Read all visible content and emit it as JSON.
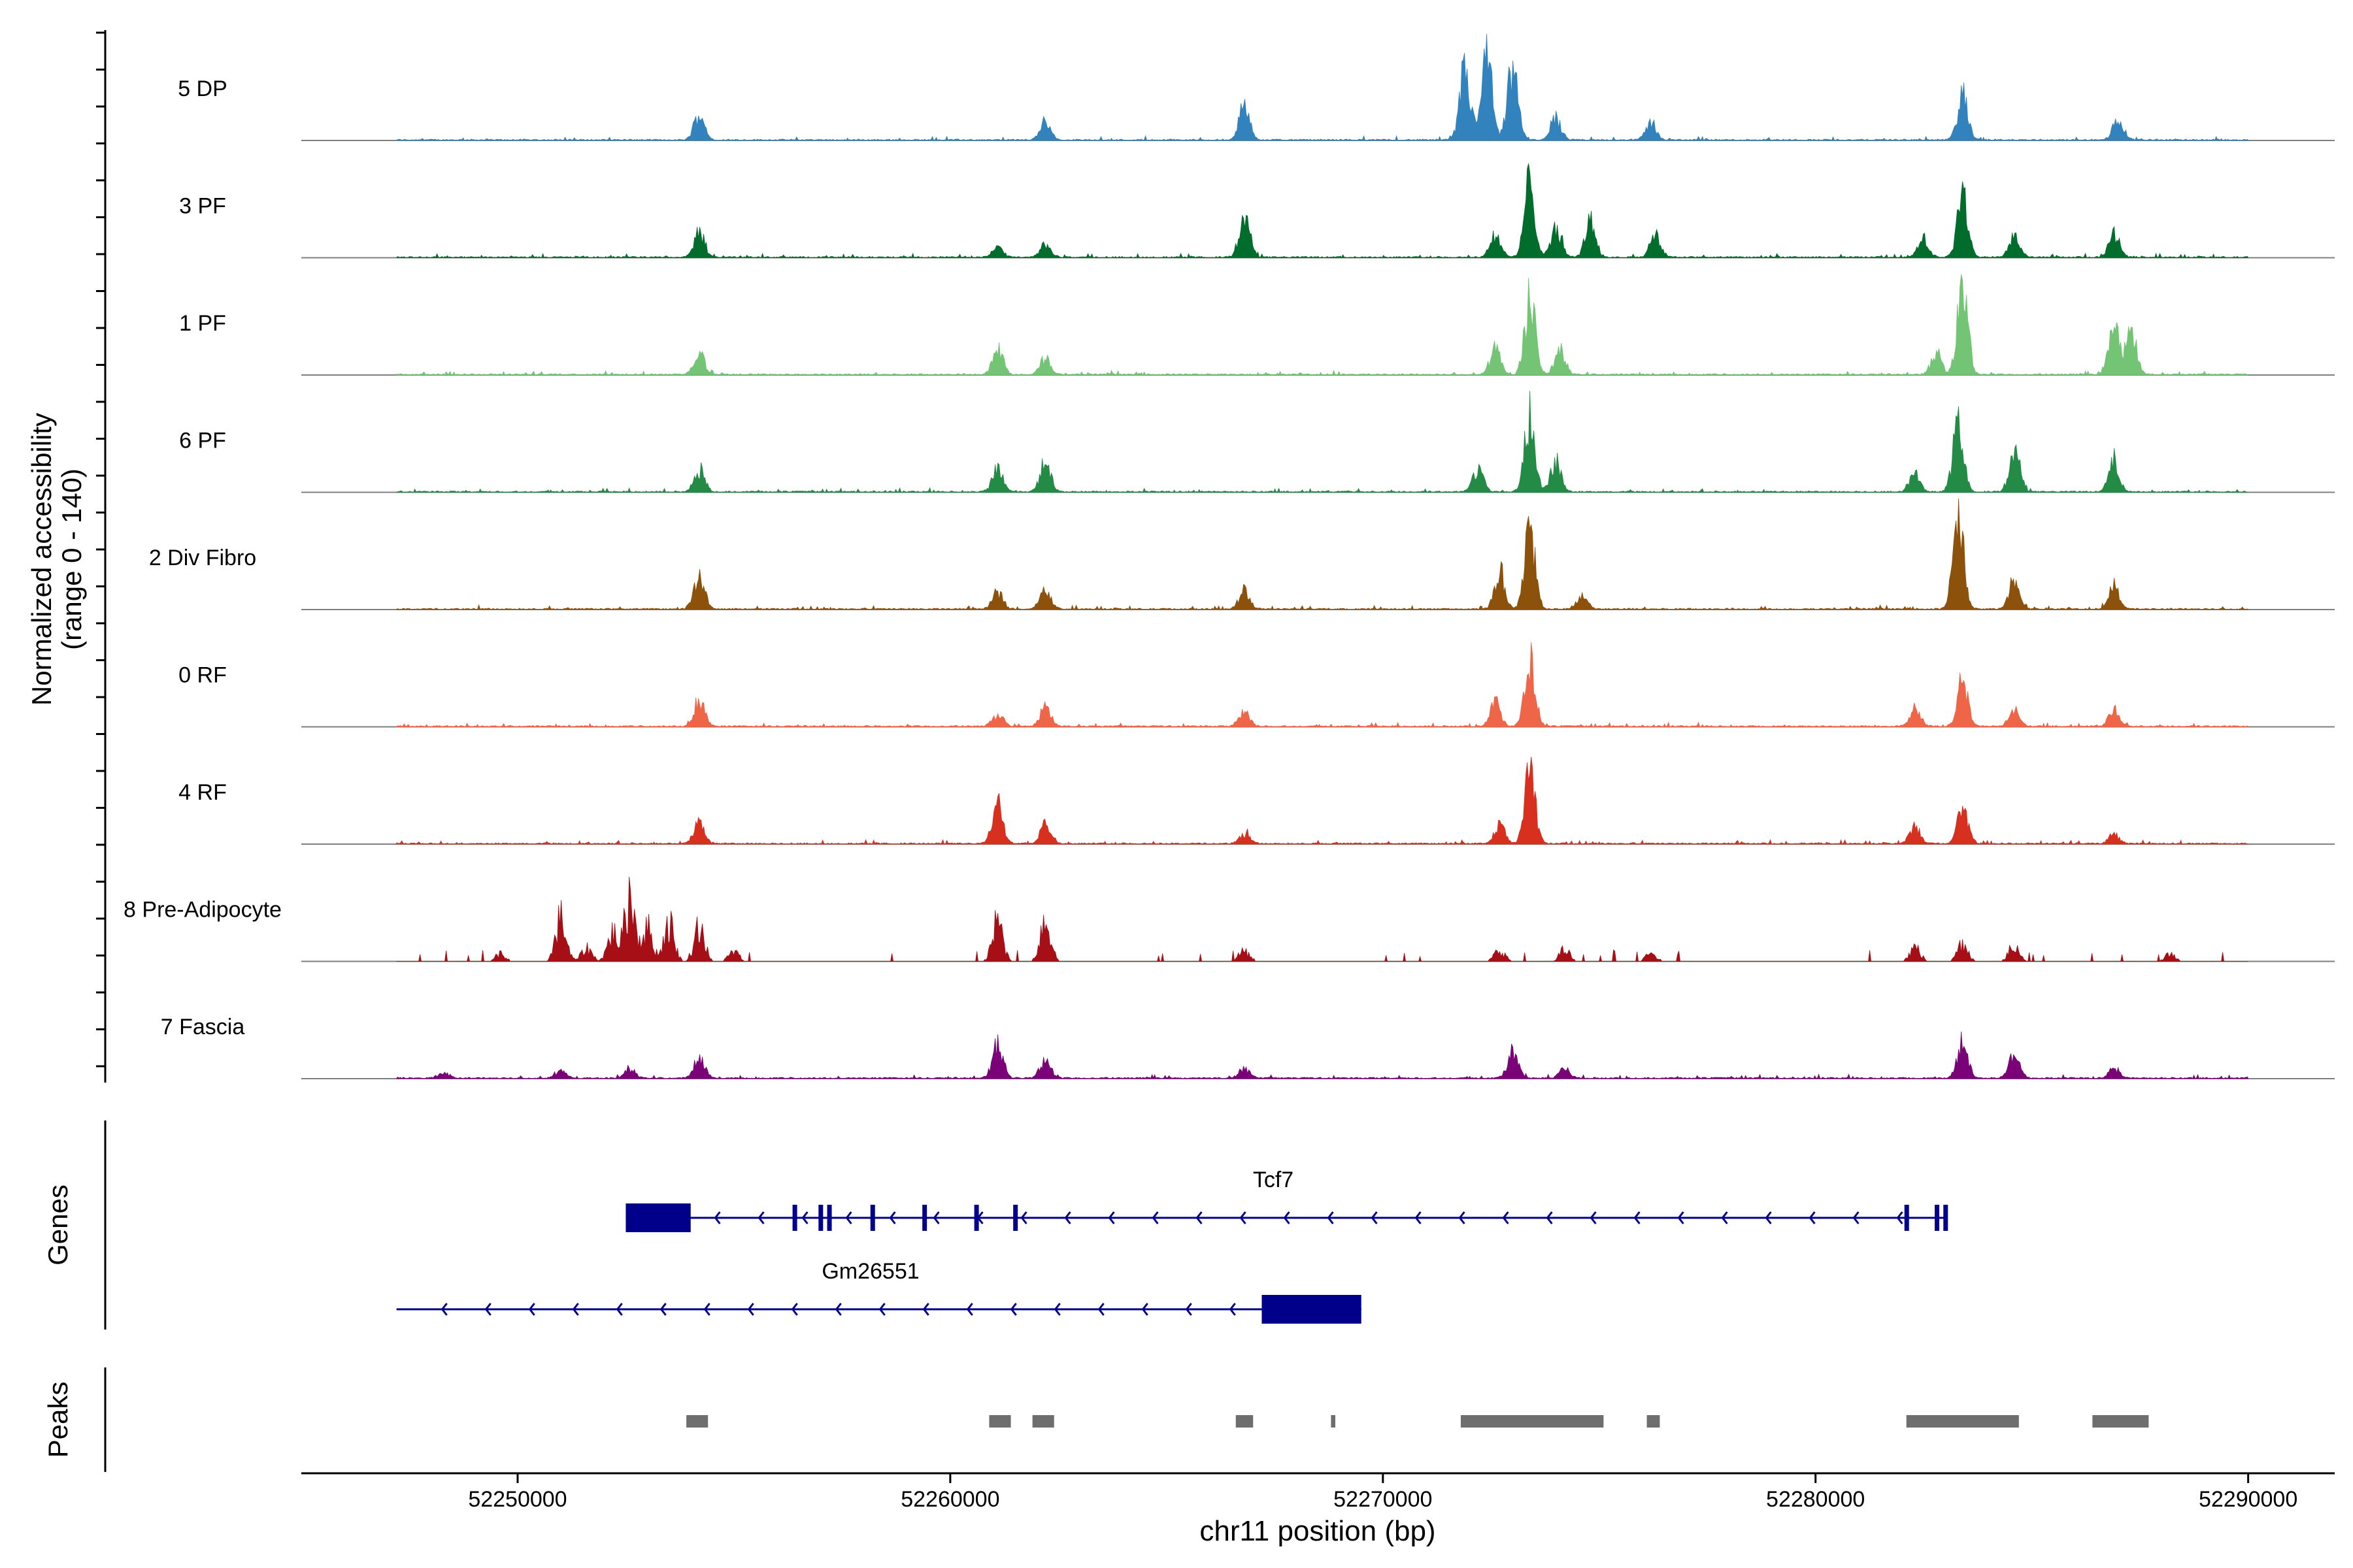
{
  "chart_data": {
    "type": "area",
    "panels": {
      "coverage": {
        "ylabel_line1": "Normalized accessibility",
        "ylabel_line2": "(range 0 - 140)",
        "yrange": [
          0,
          140
        ],
        "tracks": [
          {
            "name": "5 DP",
            "color": "#3182bd",
            "peaks": [
              [
                52254.2,
                22
              ],
              [
                52262.2,
                16
              ],
              [
                52266.8,
                30
              ],
              [
                52271.9,
                60
              ],
              [
                52272.4,
                70
              ],
              [
                52273.0,
                60
              ],
              [
                52274.0,
                18
              ],
              [
                52276.2,
                15
              ],
              [
                52283.4,
                38
              ],
              [
                52287.0,
                18
              ]
            ]
          },
          {
            "name": "3 PF",
            "color": "#006d2c",
            "peaks": [
              [
                52254.2,
                20
              ],
              [
                52261.1,
                8
              ],
              [
                52262.2,
                10
              ],
              [
                52266.8,
                38
              ],
              [
                52272.6,
                20
              ],
              [
                52273.4,
                65
              ],
              [
                52274.0,
                25
              ],
              [
                52274.8,
                30
              ],
              [
                52276.3,
                18
              ],
              [
                52282.5,
                15
              ],
              [
                52283.4,
                50
              ],
              [
                52284.6,
                18
              ],
              [
                52286.9,
                20
              ]
            ]
          },
          {
            "name": "1 PF",
            "color": "#74c476",
            "peaks": [
              [
                52254.2,
                18
              ],
              [
                52261.1,
                22
              ],
              [
                52262.2,
                14
              ],
              [
                52272.6,
                22
              ],
              [
                52273.4,
                67
              ],
              [
                52274.1,
                20
              ],
              [
                52282.8,
                18
              ],
              [
                52283.4,
                75
              ],
              [
                52286.9,
                42
              ],
              [
                52287.3,
                35
              ]
            ]
          },
          {
            "name": "6 PF",
            "color": "#238b45",
            "peaks": [
              [
                52254.2,
                18
              ],
              [
                52261.1,
                20
              ],
              [
                52262.2,
                25
              ],
              [
                52272.2,
                20
              ],
              [
                52273.4,
                63
              ],
              [
                52274.0,
                25
              ],
              [
                52282.3,
                18
              ],
              [
                52283.3,
                58
              ],
              [
                52284.6,
                38
              ],
              [
                52286.9,
                28
              ]
            ]
          },
          {
            "name": "2 Div Fibro",
            "color": "#8c510a",
            "peaks": [
              [
                52254.2,
                28
              ],
              [
                52261.1,
                14
              ],
              [
                52262.2,
                16
              ],
              [
                52266.8,
                16
              ],
              [
                52272.7,
                32
              ],
              [
                52273.4,
                65
              ],
              [
                52274.6,
                12
              ],
              [
                52283.3,
                80
              ],
              [
                52284.6,
                28
              ],
              [
                52286.9,
                20
              ]
            ]
          },
          {
            "name": "0 RF",
            "color": "#ef6548",
            "peaks": [
              [
                52254.2,
                24
              ],
              [
                52261.1,
                10
              ],
              [
                52262.2,
                16
              ],
              [
                52266.8,
                12
              ],
              [
                52272.6,
                20
              ],
              [
                52273.4,
                55
              ],
              [
                52282.3,
                15
              ],
              [
                52283.4,
                38
              ],
              [
                52284.6,
                14
              ],
              [
                52286.9,
                14
              ]
            ]
          },
          {
            "name": "4 RF",
            "color": "#d7301f",
            "peaks": [
              [
                52254.2,
                18
              ],
              [
                52261.1,
                35
              ],
              [
                52262.2,
                20
              ],
              [
                52266.8,
                8
              ],
              [
                52272.7,
                15
              ],
              [
                52273.4,
                58
              ],
              [
                52282.3,
                14
              ],
              [
                52283.4,
                32
              ],
              [
                52286.9,
                8
              ]
            ]
          },
          {
            "name": "8 Pre-Adipocyte",
            "color": "#a50f15",
            "peaks": [
              [
                52249.6,
                8
              ],
              [
                52251.0,
                45
              ],
              [
                52251.6,
                14
              ],
              [
                52252.2,
                30
              ],
              [
                52252.6,
                70
              ],
              [
                52253.0,
                35
              ],
              [
                52253.5,
                40
              ],
              [
                52254.2,
                38
              ],
              [
                52255.0,
                10
              ],
              [
                52261.1,
                42
              ],
              [
                52262.2,
                45
              ],
              [
                52266.8,
                12
              ],
              [
                52272.7,
                12
              ],
              [
                52274.2,
                12
              ],
              [
                52276.2,
                8
              ],
              [
                52282.3,
                15
              ],
              [
                52283.4,
                20
              ],
              [
                52284.6,
                18
              ],
              [
                52288.2,
                8
              ]
            ]
          },
          {
            "name": "7 Fascia",
            "color": "#7a0177",
            "peaks": [
              [
                52248.3,
                5
              ],
              [
                52251.0,
                6
              ],
              [
                52252.6,
                8
              ],
              [
                52254.2,
                18
              ],
              [
                52261.1,
                28
              ],
              [
                52262.2,
                16
              ],
              [
                52266.8,
                8
              ],
              [
                52273.0,
                22
              ],
              [
                52274.2,
                8
              ],
              [
                52283.4,
                30
              ],
              [
                52284.6,
                22
              ],
              [
                52286.9,
                8
              ]
            ]
          }
        ]
      },
      "genes": {
        "label": "Genes",
        "items": [
          {
            "name": "Tcf7",
            "strand": "-",
            "start": 52252.5,
            "end": 52283.0,
            "thick": [
              [
                52252.5,
                52254.0
              ]
            ],
            "exons": [
              52256.4,
              52257.0,
              52257.2,
              52258.2,
              52259.4,
              52260.6,
              52261.5,
              52282.1,
              52282.8,
              52283.0
            ]
          },
          {
            "name": "Gm26551",
            "strand": "-",
            "start": 52247.2,
            "end": 52269.5,
            "thick": [
              [
                52267.2,
                52269.5
              ]
            ],
            "exons": []
          }
        ]
      },
      "peaks": {
        "label": "Peaks",
        "regions": [
          [
            52253.9,
            52254.4
          ],
          [
            52260.9,
            52261.4
          ],
          [
            52261.9,
            52262.4
          ],
          [
            52266.6,
            52267.0
          ],
          [
            52268.8,
            52268.9
          ],
          [
            52271.8,
            52275.1
          ],
          [
            52276.1,
            52276.4
          ],
          [
            52282.1,
            52284.7
          ],
          [
            52286.4,
            52287.7
          ]
        ]
      }
    },
    "x": {
      "label": "chr11 position (bp)",
      "kb_range": [
        52245.0,
        52292.0
      ],
      "ticks": [
        52250000,
        52260000,
        52270000,
        52280000,
        52290000
      ],
      "tick_labels": [
        "52250000",
        "52260000",
        "52270000",
        "52280000",
        "52290000"
      ]
    },
    "data_extent_kb": [
      52247.2,
      52290.0
    ],
    "colors": {
      "gene": "#00008b",
      "peak": "#6e6e6e",
      "baseline": "#7f7f7f",
      "axis": "#000000"
    }
  }
}
